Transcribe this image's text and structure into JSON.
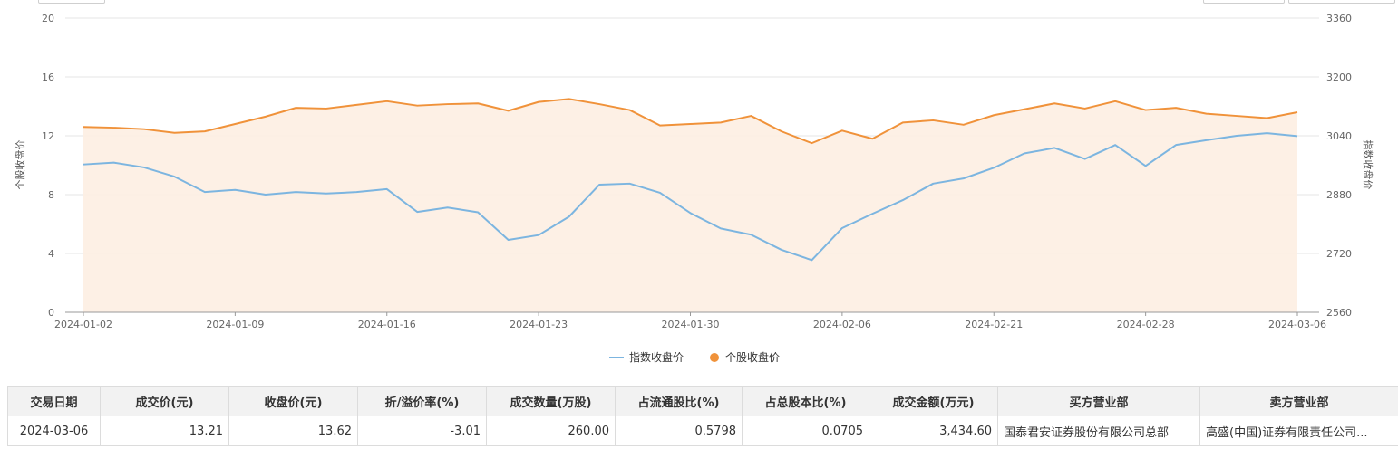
{
  "chart_data": {
    "type": "line",
    "categories": [
      "2024-01-02",
      "2024-01-03",
      "2024-01-04",
      "2024-01-05",
      "2024-01-08",
      "2024-01-09",
      "2024-01-10",
      "2024-01-11",
      "2024-01-12",
      "2024-01-15",
      "2024-01-16",
      "2024-01-17",
      "2024-01-18",
      "2024-01-19",
      "2024-01-22",
      "2024-01-23",
      "2024-01-24",
      "2024-01-25",
      "2024-01-26",
      "2024-01-29",
      "2024-01-30",
      "2024-01-31",
      "2024-02-01",
      "2024-02-02",
      "2024-02-05",
      "2024-02-06",
      "2024-02-07",
      "2024-02-08",
      "2024-02-19",
      "2024-02-20",
      "2024-02-21",
      "2024-02-22",
      "2024-02-23",
      "2024-02-26",
      "2024-02-27",
      "2024-02-28",
      "2024-02-29",
      "2024-03-01",
      "2024-03-04",
      "2024-03-05",
      "2024-03-06"
    ],
    "xticks": [
      "2024-01-02",
      "2024-01-09",
      "2024-01-16",
      "2024-01-23",
      "2024-01-30",
      "2024-02-06",
      "2024-02-21",
      "2024-02-28",
      "2024-03-06"
    ],
    "series": [
      {
        "name": "指数收盘价",
        "axis": "right",
        "color": "#7cb5e0",
        "values": [
          2962,
          2967,
          2954,
          2929,
          2887,
          2893,
          2880,
          2887,
          2883,
          2887,
          2895,
          2833,
          2845,
          2832,
          2757,
          2770,
          2820,
          2907,
          2910,
          2885,
          2830,
          2788,
          2771,
          2730,
          2702,
          2789,
          2828,
          2865,
          2910,
          2924,
          2953,
          2992,
          3007,
          2977,
          3015,
          2958,
          3015,
          3028,
          3040,
          3047,
          3039
        ]
      },
      {
        "name": "个股收盘价",
        "axis": "left",
        "color": "#f0923a",
        "values": [
          12.6,
          12.55,
          12.45,
          12.2,
          12.3,
          12.8,
          13.3,
          13.9,
          13.85,
          14.1,
          14.35,
          14.05,
          14.15,
          14.2,
          13.7,
          14.3,
          14.5,
          14.15,
          13.75,
          12.7,
          12.8,
          12.9,
          13.35,
          12.3,
          11.5,
          12.35,
          11.8,
          12.9,
          13.05,
          12.75,
          13.4,
          13.8,
          14.2,
          13.85,
          14.35,
          13.75,
          13.9,
          13.5,
          13.35,
          13.2,
          13.6
        ]
      }
    ],
    "ylabel_left": "个股收盘价",
    "ylabel_right": "指数收盘价",
    "ylim_left": [
      0,
      20
    ],
    "ylim_right": [
      2560,
      3360
    ],
    "yticks_left": [
      0,
      4,
      8,
      12,
      16,
      20
    ],
    "yticks_right": [
      2560,
      2720,
      2880,
      3040,
      3200,
      3360
    ],
    "grid": true,
    "legend_position": "bottom-center"
  },
  "table": {
    "headers": [
      "交易日期",
      "成交价(元)",
      "收盘价(元)",
      "折/溢价率(%)",
      "成交数量(万股)",
      "占流通股比(%)",
      "占总股本比(%)",
      "成交金额(万元)",
      "买方营业部",
      "卖方营业部"
    ],
    "rows": [
      [
        "2024-03-06",
        "13.21",
        "13.62",
        "-3.01",
        "260.00",
        "0.5798",
        "0.0705",
        "3,434.60",
        "国泰君安证券股份有限公司总部",
        "高盛(中国)证券有限责任公司..."
      ]
    ]
  }
}
